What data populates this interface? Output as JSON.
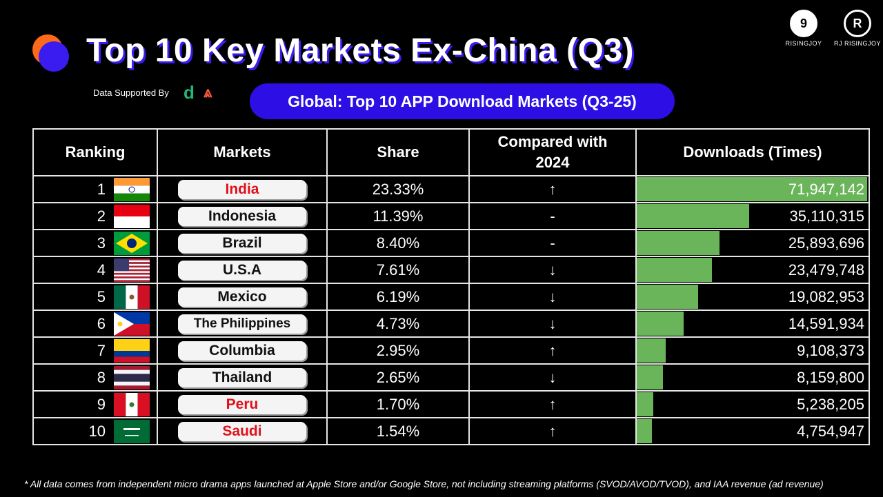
{
  "title": "Top 10 Key Markets Ex-China (Q3)",
  "supported_by": "Data Supported By",
  "brands": {
    "brand1": "RISINGJOY",
    "brand2": "RJ RISINGJOY"
  },
  "colors": {
    "accent_blue": "#2d0fe6",
    "accent_orange": "#ff6a1a",
    "bar_green": "#6ab55a",
    "highlight_red": "#e0101a"
  },
  "chart_data": {
    "type": "table",
    "title": "Global: Top 10 APP Download Markets (Q3-25)",
    "columns": [
      "Ranking",
      "Markets",
      "Share",
      "Compared with 2024",
      "Downloads (Times)"
    ],
    "rows": [
      {
        "rank": "1",
        "market": "India",
        "flag": "india-flag",
        "highlight": true,
        "share": "23.33%",
        "trend": "↑",
        "downloads": "71,947,142",
        "downloads_value": 71947142
      },
      {
        "rank": "2",
        "market": "Indonesia",
        "flag": "indonesia-flag",
        "highlight": false,
        "share": "11.39%",
        "trend": "-",
        "downloads": "35,110,315",
        "downloads_value": 35110315
      },
      {
        "rank": "3",
        "market": "Brazil",
        "flag": "brazil-flag",
        "highlight": false,
        "share": "8.40%",
        "trend": "-",
        "downloads": "25,893,696",
        "downloads_value": 25893696
      },
      {
        "rank": "4",
        "market": "U.S.A",
        "flag": "usa-flag",
        "highlight": false,
        "share": "7.61%",
        "trend": "↓",
        "downloads": "23,479,748",
        "downloads_value": 23479748
      },
      {
        "rank": "5",
        "market": "Mexico",
        "flag": "mexico-flag",
        "highlight": false,
        "share": "6.19%",
        "trend": "↓",
        "downloads": "19,082,953",
        "downloads_value": 19082953
      },
      {
        "rank": "6",
        "market": "The Philippines",
        "flag": "philippines-flag",
        "highlight": false,
        "share": "4.73%",
        "trend": "↓",
        "downloads": "14,591,934",
        "downloads_value": 14591934
      },
      {
        "rank": "7",
        "market": "Columbia",
        "flag": "colombia-flag",
        "highlight": false,
        "share": "2.95%",
        "trend": "↑",
        "downloads": "9,108,373",
        "downloads_value": 9108373
      },
      {
        "rank": "8",
        "market": "Thailand",
        "flag": "thailand-flag",
        "highlight": false,
        "share": "2.65%",
        "trend": "↓",
        "downloads": "8,159,800",
        "downloads_value": 8159800
      },
      {
        "rank": "9",
        "market": "Peru",
        "flag": "peru-flag",
        "highlight": true,
        "share": "1.70%",
        "trend": "↑",
        "downloads": "5,238,205",
        "downloads_value": 5238205
      },
      {
        "rank": "10",
        "market": "Saudi",
        "flag": "saudi-flag",
        "highlight": true,
        "share": "1.54%",
        "trend": "↑",
        "downloads": "4,754,947",
        "downloads_value": 4754947
      }
    ]
  },
  "footnote": "* All data comes from independent micro drama apps launched at Apple Store and/or Google Store, not including streaming platforms (SVOD/AVOD/TVOD), and IAA revenue   (ad revenue)"
}
